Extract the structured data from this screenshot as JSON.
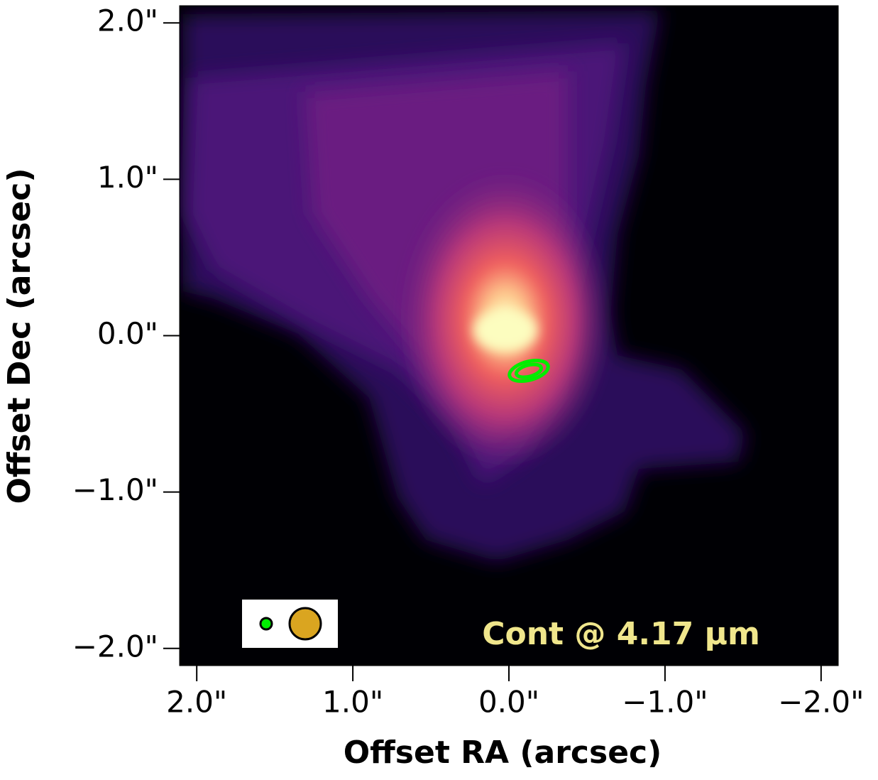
{
  "chart_data": {
    "type": "image",
    "annotation": "Cont @ 4.17 μm",
    "xlabel": "Offset RA (arcsec)",
    "ylabel": "Offset Dec (arcsec)",
    "xlim": [
      2.11,
      -2.11
    ],
    "ylim": [
      -2.11,
      2.11
    ],
    "xticks": [
      {
        "value": 2.0,
        "label": "2.0\""
      },
      {
        "value": 1.0,
        "label": "1.0\""
      },
      {
        "value": 0.0,
        "label": "0.0\""
      },
      {
        "value": -1.0,
        "label": "−1.0\""
      },
      {
        "value": -2.0,
        "label": "−2.0\""
      }
    ],
    "yticks": [
      {
        "value": 2.0,
        "label": "2.0\""
      },
      {
        "value": 1.0,
        "label": "1.0\""
      },
      {
        "value": 0.0,
        "label": "0.0\""
      },
      {
        "value": -1.0,
        "label": "−1.0\""
      },
      {
        "value": -2.0,
        "label": "−2.0\""
      }
    ],
    "colormap": "magma",
    "annotation_color": "#f0e68c"
  }
}
